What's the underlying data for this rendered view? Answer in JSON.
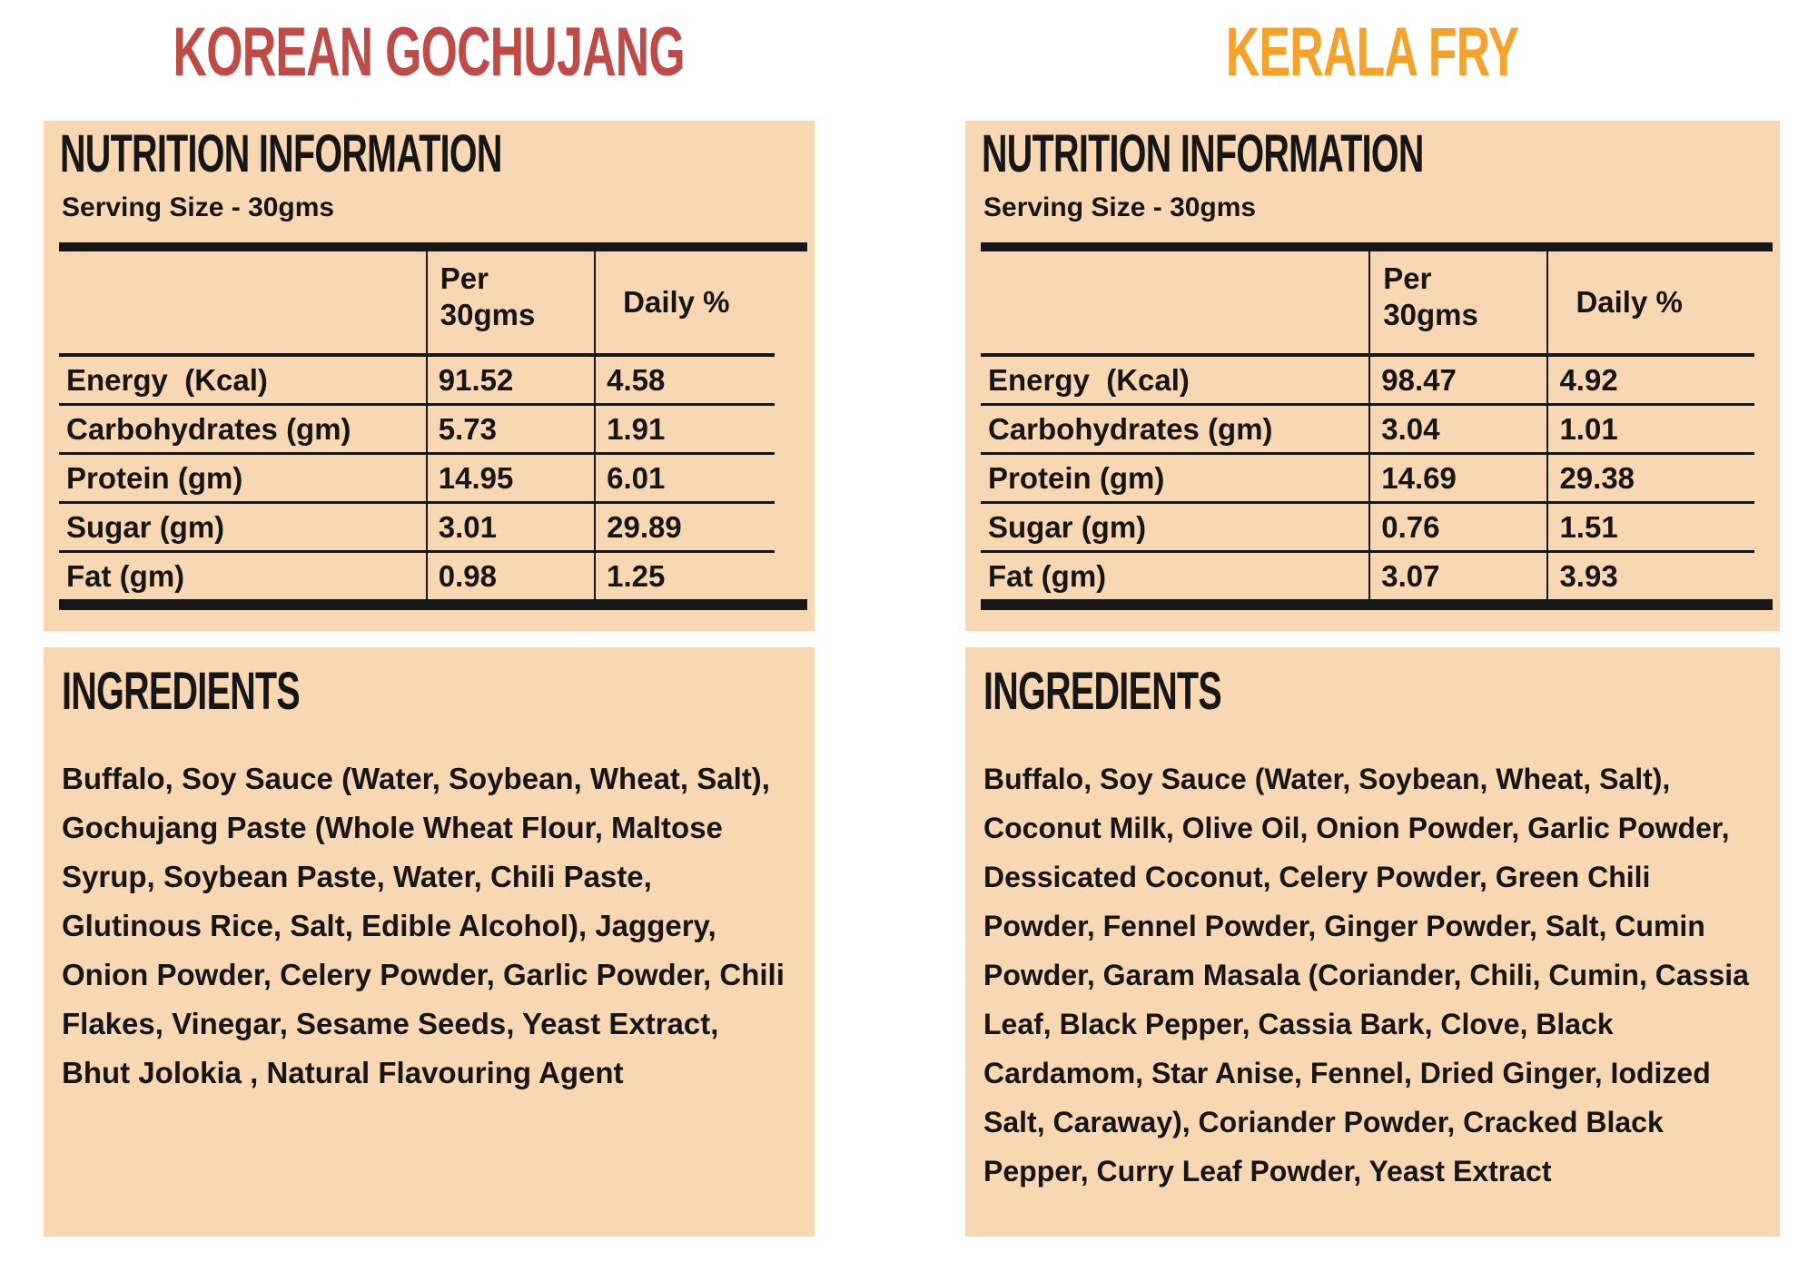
{
  "colors": {
    "panel_bg": "#f7d8b3",
    "title_left": "#c04a46",
    "title_right": "#f6a228",
    "ink": "#161616"
  },
  "panels": [
    {
      "title": "KOREAN GOCHUJANG",
      "nutrition": {
        "heading": "NUTRITION INFORMATION",
        "serving_size": "Serving Size - 30gms",
        "col_per": "Per 30gms",
        "col_daily": "Daily %",
        "rows": [
          {
            "label": "Energy  (Kcal)",
            "per": "91.52",
            "daily": "4.58"
          },
          {
            "label": "Carbohydrates (gm)",
            "per": "5.73",
            "daily": "1.91"
          },
          {
            "label": "Protein (gm)",
            "per": "14.95",
            "daily": "6.01"
          },
          {
            "label": "Sugar (gm)",
            "per": "3.01",
            "daily": "29.89"
          },
          {
            "label": "Fat (gm)",
            "per": "0.98",
            "daily": "1.25"
          }
        ]
      },
      "ingredients": {
        "heading": "INGREDIENTS",
        "text": "Buffalo, Soy Sauce (Water, Soybean, Wheat, Salt), Gochujang Paste (Whole Wheat Flour, Maltose Syrup, Soybean Paste, Water, Chili Paste, Glutinous Rice, Salt, Edible Alcohol), Jaggery, Onion Powder, Celery Powder, Garlic Powder, Chili Flakes, Vinegar, Sesame Seeds, Yeast Extract, Bhut Jolokia , Natural Flavouring Agent"
      }
    },
    {
      "title": "KERALA FRY",
      "nutrition": {
        "heading": "NUTRITION INFORMATION",
        "serving_size": "Serving Size - 30gms",
        "col_per": "Per 30gms",
        "col_daily": "Daily %",
        "rows": [
          {
            "label": "Energy  (Kcal)",
            "per": "98.47",
            "daily": "4.92"
          },
          {
            "label": "Carbohydrates (gm)",
            "per": "3.04",
            "daily": "1.01"
          },
          {
            "label": "Protein (gm)",
            "per": "14.69",
            "daily": "29.38"
          },
          {
            "label": "Sugar (gm)",
            "per": "0.76",
            "daily": "1.51"
          },
          {
            "label": "Fat (gm)",
            "per": "3.07",
            "daily": "3.93"
          }
        ]
      },
      "ingredients": {
        "heading": "INGREDIENTS",
        "text": "Buffalo, Soy Sauce (Water, Soybean, Wheat, Salt), Coconut Milk, Olive Oil, Onion Powder, Garlic Powder, Dessicated Coconut, Celery Powder, Green Chili Powder, Fennel Powder, Ginger Powder, Salt, Cumin Powder, Garam Masala (Coriander, Chili, Cumin, Cassia Leaf, Black Pepper, Cassia Bark, Clove, Black Cardamom, Star Anise, Fennel, Dried Ginger, Iodized Salt, Caraway), Coriander Powder, Cracked Black Pepper, Curry Leaf Powder, Yeast Extract"
      }
    }
  ]
}
